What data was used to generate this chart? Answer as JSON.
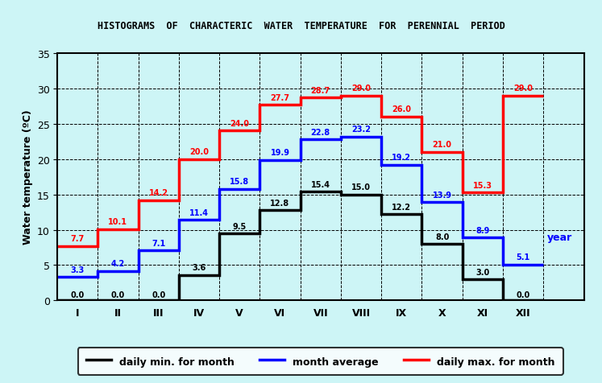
{
  "title": "HISTOGRAMS  OF  CHARACTERIC  WATER  TEMPERATURE  FOR  PERENNIAL  PERIOD",
  "xlabel_months": [
    "I",
    "II",
    "III",
    "IV",
    "V",
    "VI",
    "VII",
    "VIII",
    "IX",
    "X",
    "XI",
    "XII"
  ],
  "ylabel": "Water temperature (ºC)",
  "ylim": [
    0,
    35
  ],
  "yticks": [
    0,
    5,
    10,
    15,
    20,
    25,
    30,
    35
  ],
  "background_color": "#cdf5f6",
  "daily_min": [
    0.0,
    0.0,
    0.0,
    3.6,
    9.5,
    12.8,
    15.4,
    15.0,
    12.2,
    8.0,
    3.0,
    0.0
  ],
  "daily_min_labels": [
    "0.0",
    "0.0",
    "0.0",
    "3.6",
    "9.5",
    "12.8",
    "15.4",
    "15.0",
    "12.2",
    "8.0",
    "3.0",
    "0.0"
  ],
  "month_avg": [
    3.3,
    4.2,
    7.1,
    11.4,
    15.8,
    19.9,
    22.8,
    23.2,
    19.2,
    13.9,
    8.9,
    5.1
  ],
  "month_avg_labels": [
    "3.3",
    "4.2",
    "7.1",
    "11.4",
    "15.8",
    "19.9",
    "22.8",
    "23.2",
    "19.2",
    "13.9",
    "8.9",
    "5.1"
  ],
  "daily_max": [
    7.7,
    10.1,
    14.2,
    20.0,
    24.0,
    27.7,
    28.7,
    29.0,
    26.0,
    21.0,
    15.3,
    29.0
  ],
  "daily_max_labels": [
    "7.7",
    "10.1",
    "14.2",
    "20.0",
    "24.0",
    "27.7",
    "28.7",
    "29.0",
    "26.0",
    "21.0",
    "15.3",
    "29.0"
  ],
  "min_color": "#000000",
  "avg_color": "#0000ff",
  "max_color": "#ff0000",
  "legend_labels": [
    "daily min. for month",
    "month average",
    "daily max. for month"
  ],
  "year_label": "year",
  "lw": 2.5
}
